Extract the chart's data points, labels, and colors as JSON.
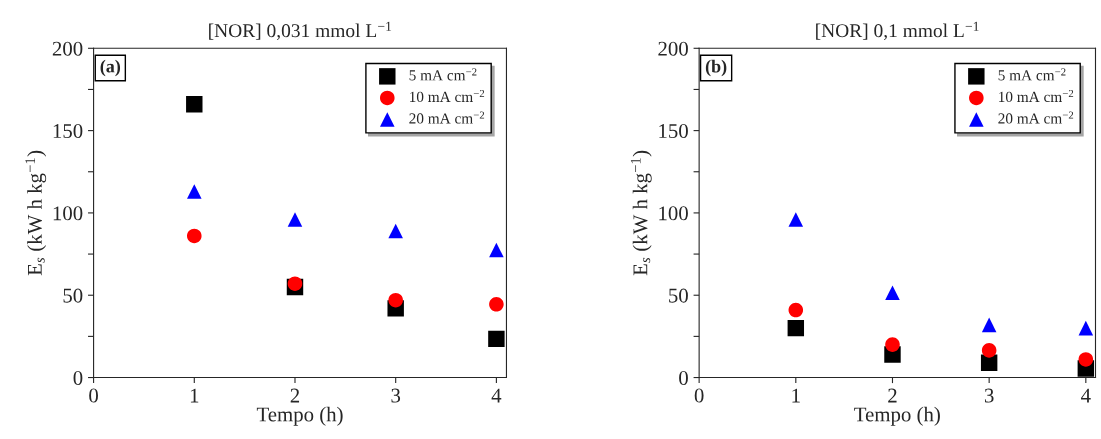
{
  "chart_data": [
    {
      "type": "scatter",
      "title": "[NOR] 0,031 mmol L$^{−1}$",
      "xlabel": "Tempo (h)",
      "ylabel": "E$_{s}$ (kW h kg$^{−1}$)",
      "annotations": [
        "(a)"
      ],
      "x": [
        1,
        2,
        3,
        4
      ],
      "xlim": [
        0,
        4.1
      ],
      "xticks": [
        0,
        1,
        2,
        3,
        4
      ],
      "ylim": [
        0,
        200
      ],
      "yticks": [
        0,
        {
          "value": 25,
          "label": null
        },
        50,
        {
          "value": 75,
          "label": null
        },
        100,
        {
          "value": 125,
          "label": null
        },
        150,
        {
          "value": 175,
          "label": null
        },
        200
      ],
      "legend": "top right",
      "grid": false,
      "series": [
        {
          "name": "5 mA cm$^{−2}$",
          "color": "#000000",
          "marker": "square",
          "values": [
            166,
            55,
            42,
            23.5
          ]
        },
        {
          "name": "10 mA cm$^{−2}$",
          "color": "#ff0000",
          "marker": "circle",
          "values": [
            86,
            57,
            47,
            44.5
          ]
        },
        {
          "name": "20 mA cm$^{−2}$",
          "color": "#0000ff",
          "marker": "triangle",
          "values": [
            113,
            96,
            89,
            77.5
          ]
        }
      ]
    },
    {
      "type": "scatter",
      "title": "[NOR] 0,1 mmol L$^{−1}$",
      "xlabel": "Tempo (h)",
      "ylabel": "E$_{s}$ (kW h kg$^{−1}$)",
      "annotations": [
        "(b)"
      ],
      "x": [
        1,
        2,
        3,
        4
      ],
      "xlim": [
        0,
        4.1
      ],
      "xticks": [
        0,
        1,
        2,
        3,
        4
      ],
      "ylim": [
        0,
        200
      ],
      "yticks": [
        0,
        {
          "value": 25,
          "label": null
        },
        50,
        {
          "value": 75,
          "label": null
        },
        100,
        {
          "value": 125,
          "label": null
        },
        150,
        {
          "value": 175,
          "label": null
        },
        200
      ],
      "legend": "top right",
      "grid": false,
      "series": [
        {
          "name": "5 mA cm$^{−2}$",
          "color": "#000000",
          "marker": "square",
          "values": [
            30,
            14,
            9,
            5.5
          ]
        },
        {
          "name": "10 mA cm$^{−2}$",
          "color": "#ff0000",
          "marker": "circle",
          "values": [
            41,
            20,
            16.5,
            11
          ]
        },
        {
          "name": "20 mA cm$^{−2}$",
          "color": "#0000ff",
          "marker": "triangle",
          "values": [
            96,
            51.5,
            32,
            30
          ]
        }
      ]
    }
  ]
}
